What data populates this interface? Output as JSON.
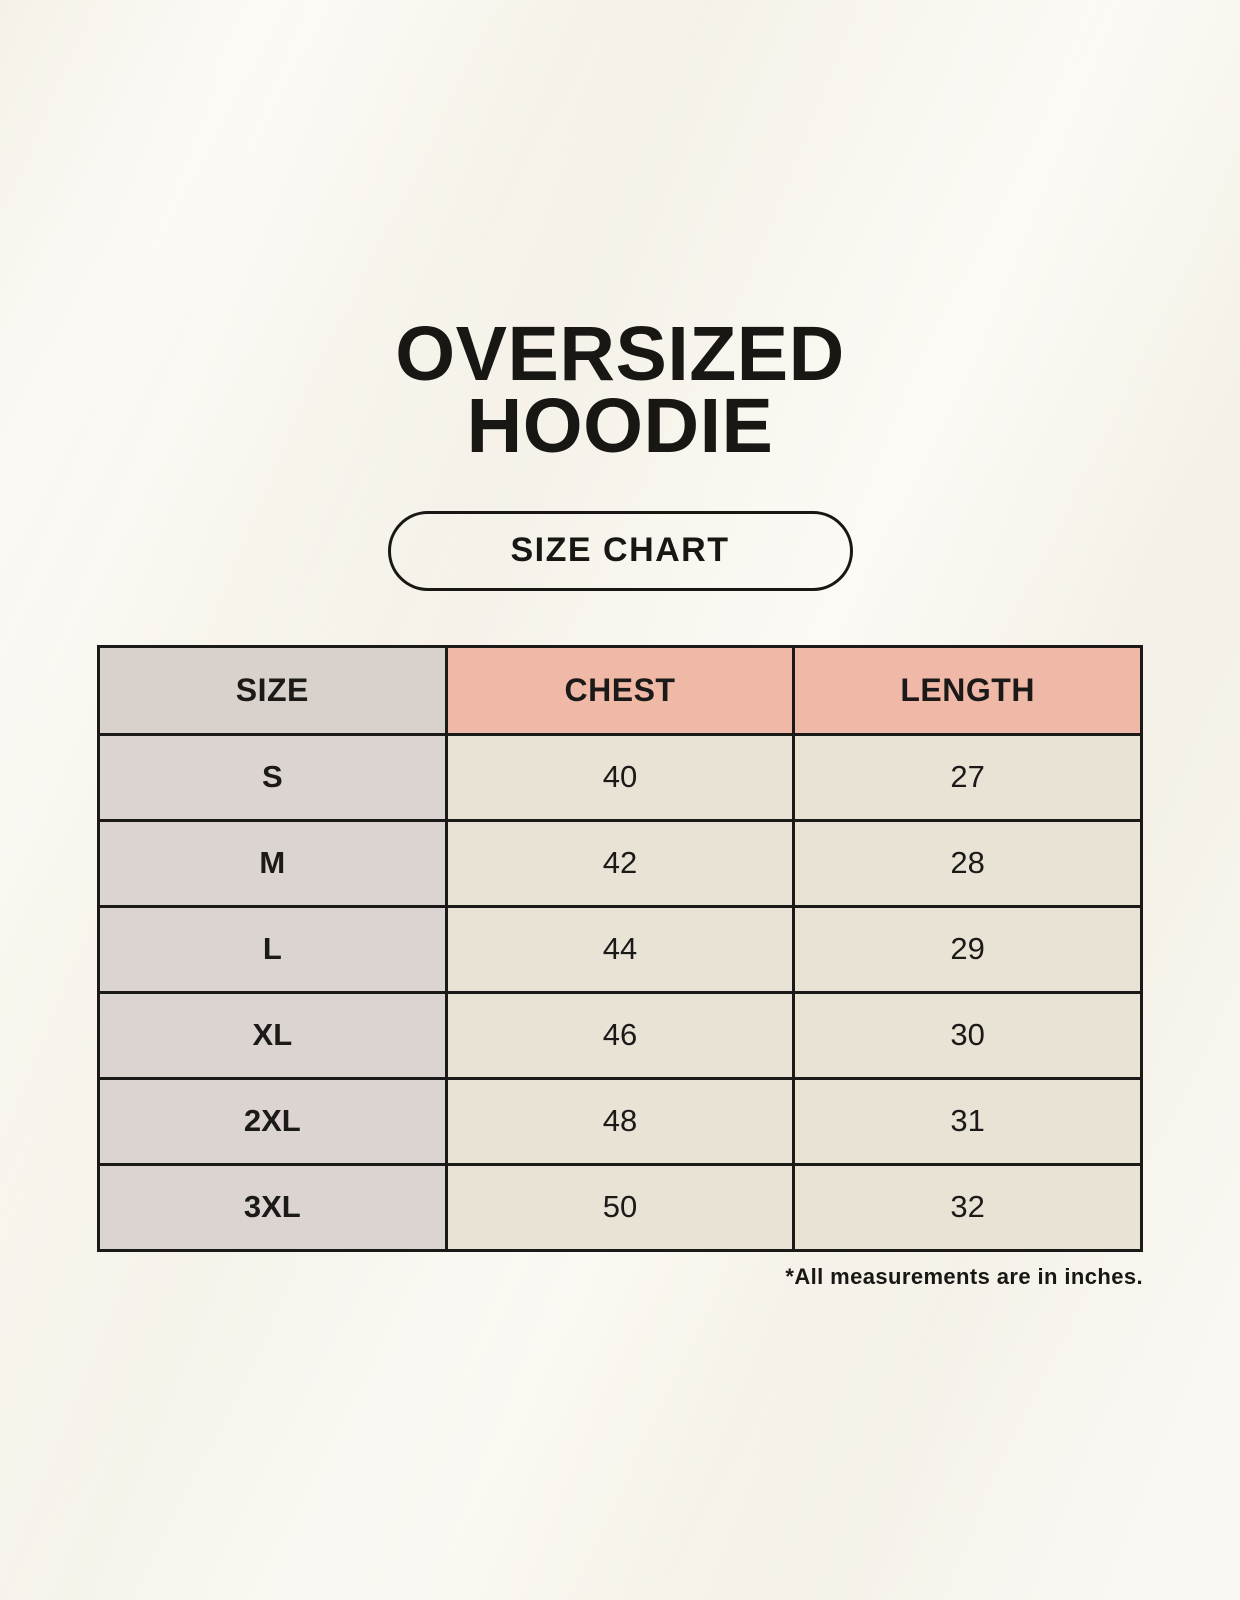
{
  "header": {
    "title_line1": "OVERSIZED",
    "title_line2": "HOODIE",
    "badge_label": "SIZE CHART"
  },
  "table": {
    "headers": [
      "SIZE",
      "CHEST",
      "LENGTH"
    ],
    "rows": [
      [
        "S",
        "40",
        "27"
      ],
      [
        "M",
        "42",
        "28"
      ],
      [
        "L",
        "44",
        "29"
      ],
      [
        "XL",
        "46",
        "30"
      ],
      [
        "2XL",
        "48",
        "31"
      ],
      [
        "3XL",
        "50",
        "32"
      ]
    ]
  },
  "footnote": "*All measurements are in inches.",
  "colors": {
    "background": "#f7f3ea",
    "size_column": "#d9d2cd",
    "accent_header": "#f0b8a6",
    "value_cell": "#e9e3d6",
    "border": "#1b1a18",
    "text": "#181714"
  },
  "chart_data": {
    "type": "table",
    "title": "OVERSIZED HOODIE",
    "subtitle": "SIZE CHART",
    "columns": [
      "SIZE",
      "CHEST",
      "LENGTH"
    ],
    "rows": [
      [
        "S",
        40,
        27
      ],
      [
        "M",
        42,
        28
      ],
      [
        "L",
        44,
        29
      ],
      [
        "XL",
        46,
        30
      ],
      [
        "2XL",
        48,
        31
      ],
      [
        "3XL",
        50,
        32
      ]
    ],
    "units": "inches",
    "note": "*All measurements are in inches."
  }
}
